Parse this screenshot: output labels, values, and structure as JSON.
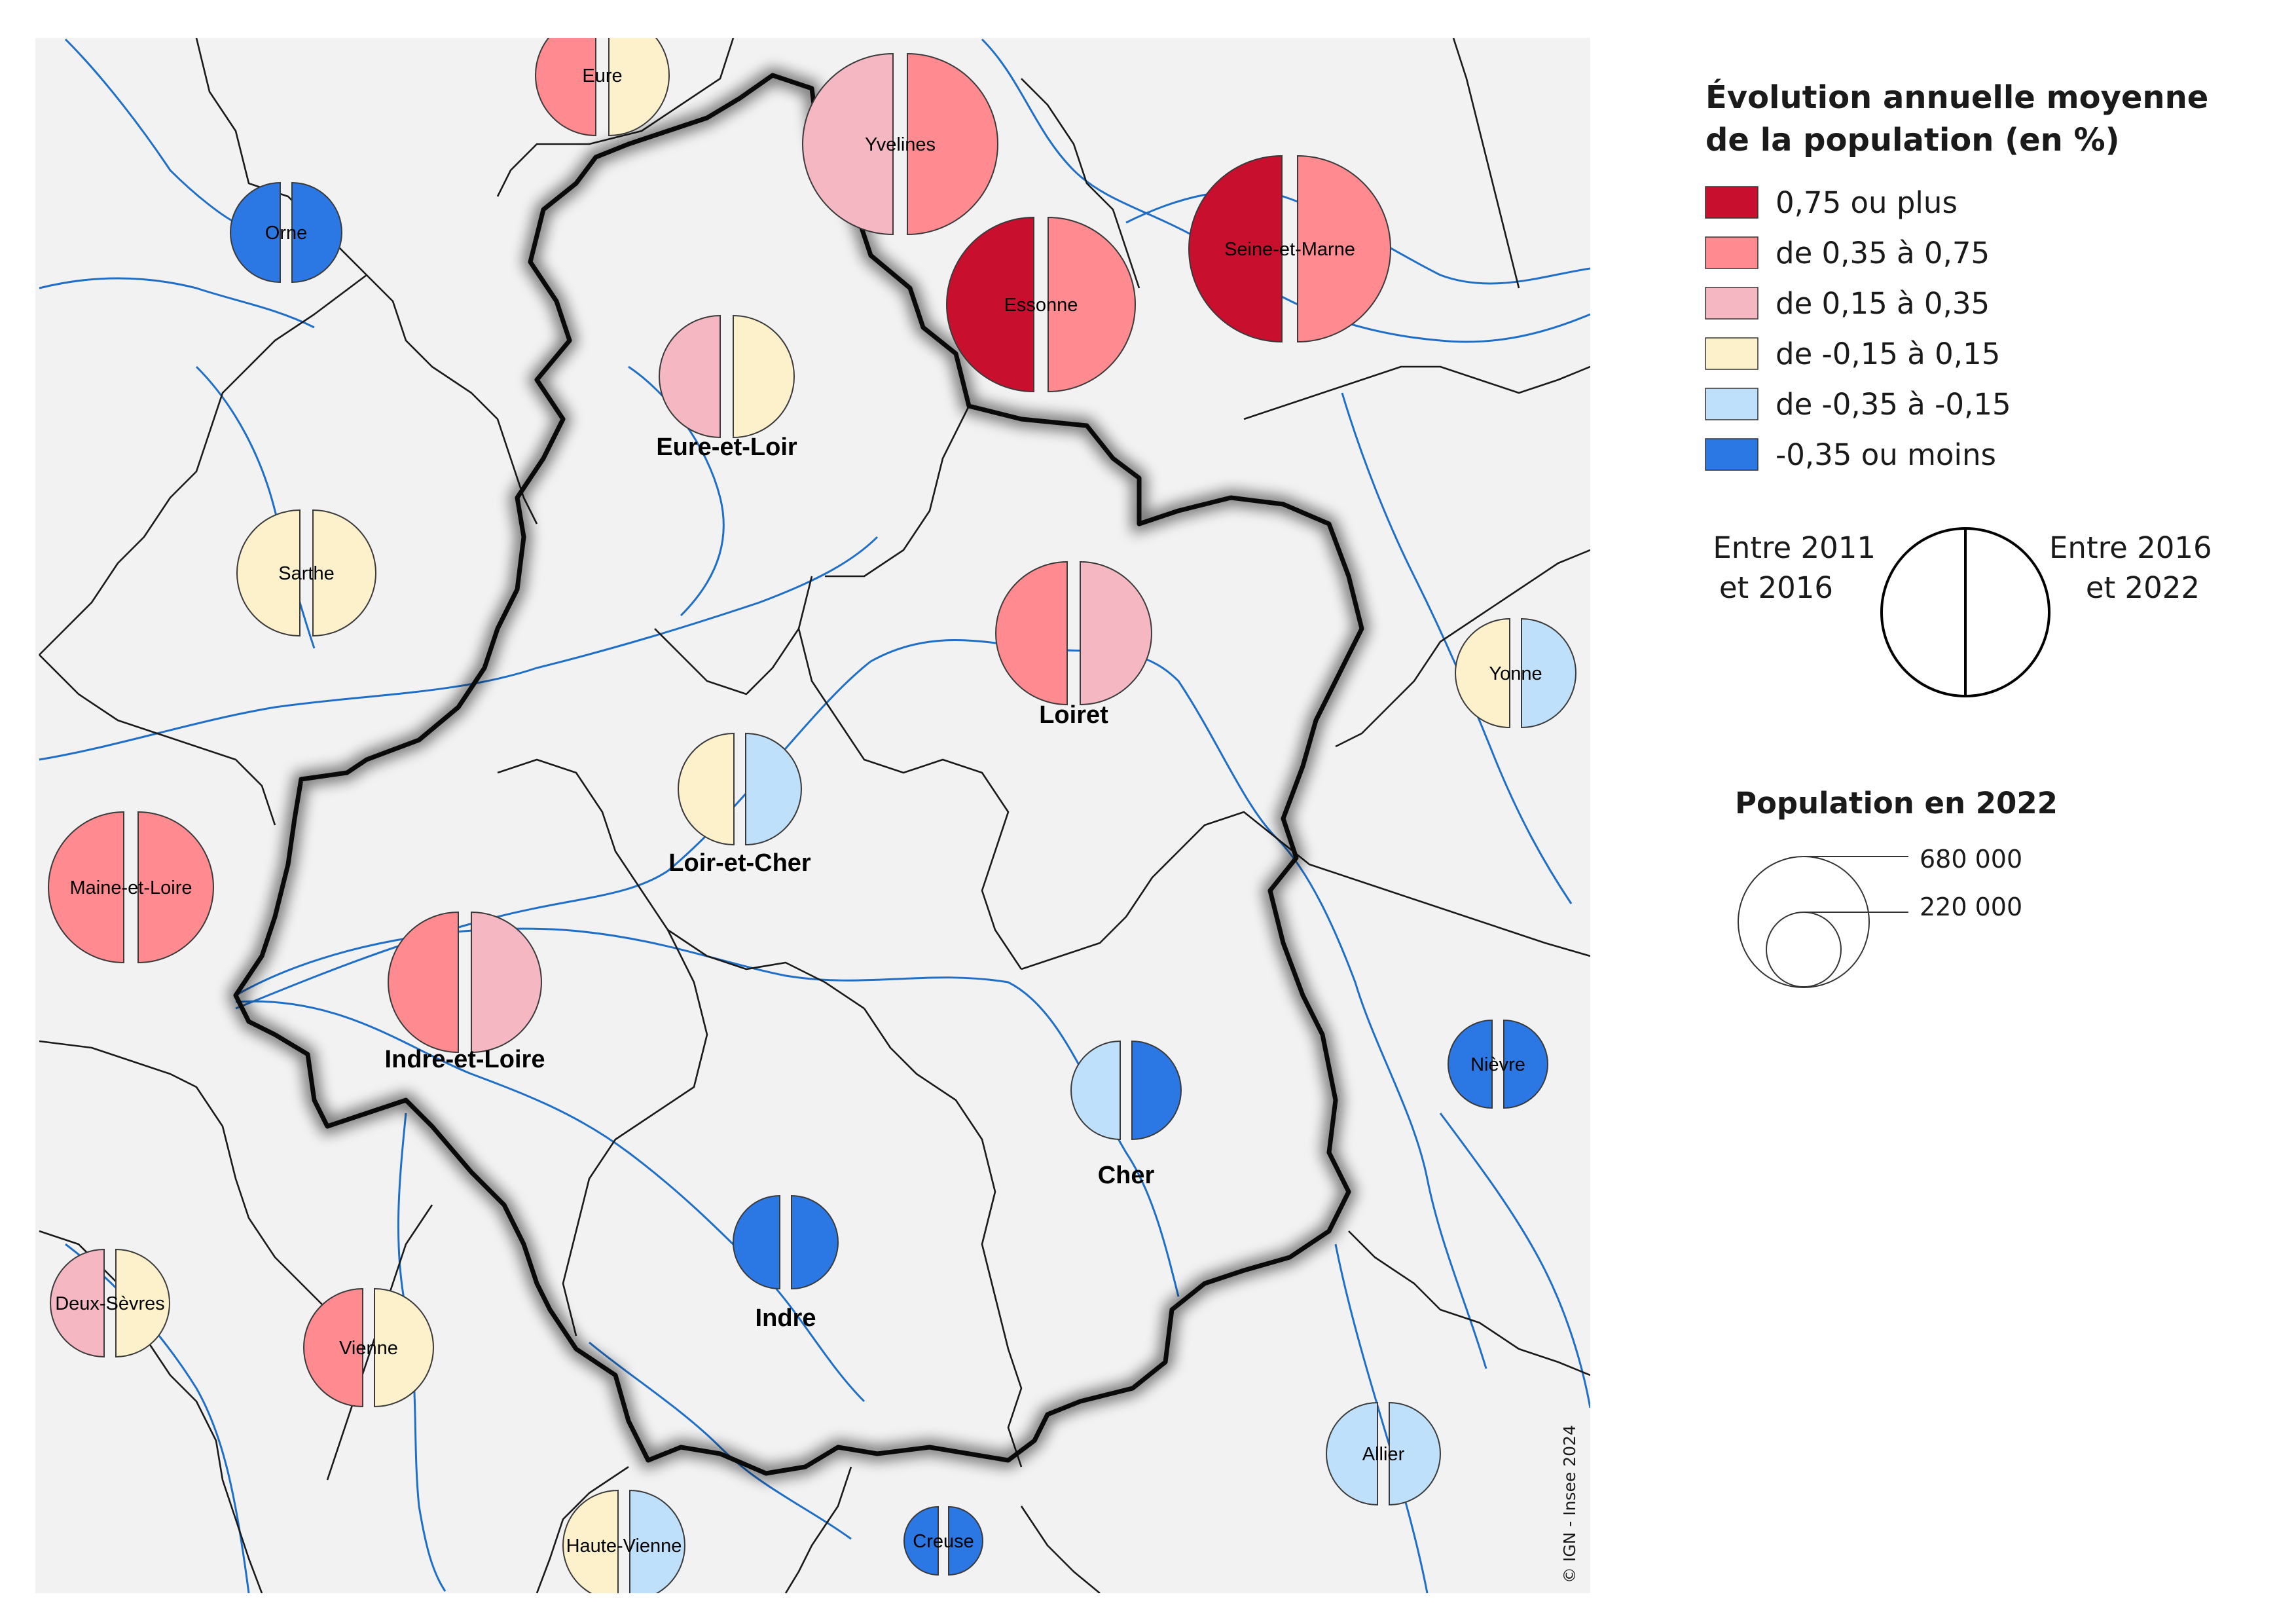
{
  "legend": {
    "title_line1": "Évolution annuelle moyenne",
    "title_line2": "de la population (en %)",
    "classes": [
      {
        "label": "0,75 ou plus",
        "color": "#c8102e"
      },
      {
        "label": "de 0,35 à 0,75",
        "color": "#ff8a8f"
      },
      {
        "label": "de 0,15 à 0,35",
        "color": "#f5b8c2"
      },
      {
        "label": "de -0,15 à 0,15",
        "color": "#fdf1cc"
      },
      {
        "label": "de -0,35 à -0,15",
        "color": "#bee0fb"
      },
      {
        "label": "-0,35 ou moins",
        "color": "#2b78e4"
      }
    ],
    "half_left_line1": "Entre 2011",
    "half_left_line2": "et 2016",
    "half_right_line1": "Entre 2016",
    "half_right_line2": "et 2022",
    "population_title": "Population en 2022",
    "pop_large": "680 000",
    "pop_small": "220 000"
  },
  "copyright": "© IGN - Insee 2024",
  "departments": [
    {
      "name": "Eure",
      "in_region": false,
      "left_class": 1,
      "right_class": 3
    },
    {
      "name": "Yvelines",
      "in_region": false,
      "left_class": 2,
      "right_class": 1
    },
    {
      "name": "Orne",
      "in_region": false,
      "left_class": 5,
      "right_class": 5
    },
    {
      "name": "Essonne",
      "in_region": false,
      "left_class": 0,
      "right_class": 1
    },
    {
      "name": "Seine-et-Marne",
      "in_region": false,
      "left_class": 0,
      "right_class": 1
    },
    {
      "name": "Eure-et-Loir",
      "in_region": true,
      "left_class": 2,
      "right_class": 3
    },
    {
      "name": "Sarthe",
      "in_region": false,
      "left_class": 3,
      "right_class": 3
    },
    {
      "name": "Loiret",
      "in_region": true,
      "left_class": 1,
      "right_class": 2
    },
    {
      "name": "Yonne",
      "in_region": false,
      "left_class": 3,
      "right_class": 4
    },
    {
      "name": "Loir-et-Cher",
      "in_region": true,
      "left_class": 3,
      "right_class": 4
    },
    {
      "name": "Maine-et-Loire",
      "in_region": false,
      "left_class": 1,
      "right_class": 1
    },
    {
      "name": "Indre-et-Loire",
      "in_region": true,
      "left_class": 1,
      "right_class": 2
    },
    {
      "name": "Nièvre",
      "in_region": false,
      "left_class": 5,
      "right_class": 5
    },
    {
      "name": "Cher",
      "in_region": true,
      "left_class": 4,
      "right_class": 5
    },
    {
      "name": "Indre",
      "in_region": true,
      "left_class": 5,
      "right_class": 5
    },
    {
      "name": "Deux-Sèvres",
      "in_region": false,
      "left_class": 2,
      "right_class": 3
    },
    {
      "name": "Vienne",
      "in_region": false,
      "left_class": 1,
      "right_class": 3
    },
    {
      "name": "Allier",
      "in_region": false,
      "left_class": 4,
      "right_class": 4
    },
    {
      "name": "Haute-Vienne",
      "in_region": false,
      "left_class": 3,
      "right_class": 4
    },
    {
      "name": "Creuse",
      "in_region": false,
      "left_class": 5,
      "right_class": 5
    }
  ]
}
